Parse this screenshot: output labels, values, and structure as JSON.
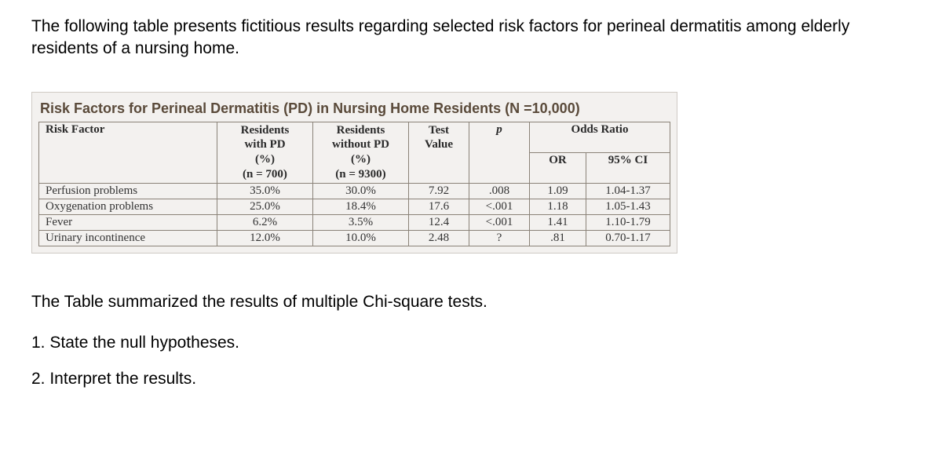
{
  "intro": "The following table presents fictitious results regarding selected risk factors for perineal dermatitis among elderly residents of a nursing home.",
  "table": {
    "title": "Risk Factors for Perineal Dermatitis (PD) in Nursing Home Residents (N =10,000)",
    "headers": {
      "risk_factor": "Risk Factor",
      "with_pd_l1": "Residents",
      "with_pd_l2": "with PD",
      "with_pd_l3": "(%)",
      "with_pd_l4": "(n = 700)",
      "without_pd_l1": "Residents",
      "without_pd_l2": "without PD",
      "without_pd_l3": "(%)",
      "without_pd_l4": "(n = 9300)",
      "test_l1": "Test",
      "test_l2": "Value",
      "p": "p",
      "odds_ratio": "Odds Ratio",
      "or": "OR",
      "ci": "95% CI"
    },
    "rows": [
      {
        "rf": "Perfusion problems",
        "with": "35.0%",
        "without": "30.0%",
        "test": "7.92",
        "p": ".008",
        "or": "1.09",
        "ci": "1.04-1.37"
      },
      {
        "rf": "Oxygenation problems",
        "with": "25.0%",
        "without": "18.4%",
        "test": "17.6",
        "p": "<.001",
        "or": "1.18",
        "ci": "1.05-1.43"
      },
      {
        "rf": "Fever",
        "with": "6.2%",
        "without": "3.5%",
        "test": "12.4",
        "p": "<.001",
        "or": "1.41",
        "ci": "1.10-1.79"
      },
      {
        "rf": "Urinary incontinence",
        "with": "12.0%",
        "without": "10.0%",
        "test": "2.48",
        "p": "?",
        "or": ".81",
        "ci": "0.70-1.17"
      }
    ]
  },
  "summary": "The Table summarized the results of multiple Chi-square tests.",
  "q1": "1.  State the null hypotheses.",
  "q2": "2. Interpret the results."
}
